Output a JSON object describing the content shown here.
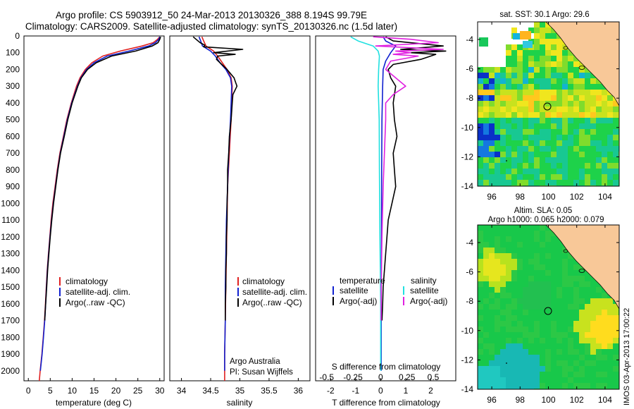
{
  "header": {
    "line1": "Argo profile: CS 5903912_50 24-Mar-2013 20130326_388 8.194S 99.79E",
    "line2": "Climatology: CARS2009. Satellite-adjusted climatology: synTS_20130326.nc (1.5d later)"
  },
  "colors": {
    "climatology": "#e02020",
    "satellite": "#1020d0",
    "argo": "#000000",
    "sat_salinity": "#20e0e0",
    "argo_salinity": "#e020e0",
    "land": "#f8c898"
  },
  "depth_axis": {
    "ticks": [
      0,
      100,
      200,
      300,
      400,
      500,
      600,
      700,
      800,
      900,
      1000,
      1100,
      1200,
      1300,
      1400,
      1500,
      1600,
      1700,
      1800,
      1900,
      2000
    ],
    "range": [
      0,
      2060
    ]
  },
  "chart_data": [
    {
      "type": "line",
      "xlabel": "temperature (deg C)",
      "xlim": [
        -1,
        31
      ],
      "xticks": [
        0,
        5,
        10,
        15,
        20,
        25,
        30
      ],
      "ylabel": "depth",
      "ylim": [
        2060,
        0
      ],
      "legend": [
        "climatology",
        "satellite-adj. clim.",
        "Argo(..raw -QC)"
      ],
      "series": [
        {
          "name": "climatology",
          "color": "#e02020",
          "points": [
            [
              30,
              5
            ],
            [
              29.5,
              20
            ],
            [
              28.5,
              40
            ],
            [
              26,
              60
            ],
            [
              21,
              90
            ],
            [
              17,
              120
            ],
            [
              14.5,
              160
            ],
            [
              13,
              200
            ],
            [
              11.8,
              250
            ],
            [
              11,
              300
            ],
            [
              9.8,
              400
            ],
            [
              8.8,
              500
            ],
            [
              8,
              600
            ],
            [
              7.2,
              700
            ],
            [
              6.6,
              800
            ],
            [
              6.1,
              900
            ],
            [
              5.6,
              1000
            ],
            [
              5.2,
              1100
            ],
            [
              4.9,
              1200
            ],
            [
              4.6,
              1300
            ],
            [
              4.3,
              1400
            ],
            [
              4.1,
              1500
            ],
            [
              3.9,
              1600
            ],
            [
              3.7,
              1700
            ],
            [
              3.4,
              1800
            ],
            [
              3.1,
              1900
            ],
            [
              2.7,
              2000
            ],
            [
              2.5,
              2060
            ]
          ]
        },
        {
          "name": "satellite-adj. clim.",
          "color": "#1020d0",
          "points": [
            [
              30,
              5
            ],
            [
              29.8,
              20
            ],
            [
              29,
              40
            ],
            [
              27.5,
              60
            ],
            [
              23,
              90
            ],
            [
              18,
              120
            ],
            [
              15,
              160
            ],
            [
              13.3,
              200
            ],
            [
              12,
              250
            ],
            [
              11.2,
              300
            ],
            [
              9.9,
              400
            ],
            [
              8.9,
              500
            ],
            [
              8.1,
              600
            ],
            [
              7.3,
              700
            ],
            [
              6.7,
              800
            ],
            [
              6.2,
              900
            ],
            [
              5.7,
              1000
            ],
            [
              5.3,
              1100
            ],
            [
              4.95,
              1200
            ],
            [
              4.65,
              1300
            ],
            [
              4.35,
              1400
            ],
            [
              4.15,
              1500
            ],
            [
              3.95,
              1600
            ],
            [
              3.75,
              1700
            ],
            [
              3.45,
              1800
            ],
            [
              3.15,
              1900
            ],
            [
              2.75,
              2000
            ]
          ]
        },
        {
          "name": "Argo(..raw -QC)",
          "color": "#000000",
          "points": [
            [
              30.2,
              5
            ],
            [
              30,
              20
            ],
            [
              29.6,
              40
            ],
            [
              28.3,
              60
            ],
            [
              24.5,
              90
            ],
            [
              19,
              120
            ],
            [
              15.5,
              160
            ],
            [
              13.5,
              200
            ],
            [
              12.1,
              250
            ],
            [
              11.3,
              300
            ],
            [
              10,
              400
            ],
            [
              9,
              500
            ],
            [
              8.2,
              600
            ],
            [
              7.35,
              700
            ],
            [
              6.75,
              800
            ],
            [
              6.25,
              900
            ],
            [
              5.75,
              1000
            ],
            [
              5.35,
              1100
            ],
            [
              5,
              1200
            ],
            [
              4.7,
              1300
            ],
            [
              4.4,
              1400
            ],
            [
              4.2,
              1500
            ],
            [
              3.95,
              1600
            ],
            [
              3.75,
              1700
            ]
          ]
        }
      ]
    },
    {
      "type": "line",
      "xlabel": "salinity",
      "xlim": [
        33.8,
        36.2
      ],
      "xticks": [
        34,
        34.5,
        35,
        35.5,
        36
      ],
      "ylabel": "depth",
      "ylim": [
        2060,
        0
      ],
      "legend": [
        "climatology",
        "satellite-adj. clim.",
        "Argo(..raw -QC)"
      ],
      "annotation": [
        "Argo Australia",
        "PI: Susan Wijffels"
      ],
      "series": [
        {
          "name": "climatology",
          "color": "#e02020",
          "points": [
            [
              34.35,
              5
            ],
            [
              34.38,
              30
            ],
            [
              34.42,
              60
            ],
            [
              34.55,
              90
            ],
            [
              34.62,
              120
            ],
            [
              34.7,
              160
            ],
            [
              34.78,
              200
            ],
            [
              34.85,
              250
            ],
            [
              34.87,
              300
            ],
            [
              34.86,
              400
            ],
            [
              34.85,
              500
            ],
            [
              34.82,
              700
            ],
            [
              34.79,
              900
            ],
            [
              34.78,
              1100
            ],
            [
              34.77,
              1300
            ],
            [
              34.76,
              1500
            ],
            [
              34.75,
              1700
            ],
            [
              34.74,
              1900
            ],
            [
              34.74,
              2060
            ]
          ]
        },
        {
          "name": "satellite-adj. clim.",
          "color": "#1020d0",
          "points": [
            [
              34.3,
              5
            ],
            [
              34.33,
              30
            ],
            [
              34.36,
              60
            ],
            [
              34.5,
              90
            ],
            [
              34.58,
              120
            ],
            [
              34.66,
              160
            ],
            [
              34.76,
              200
            ],
            [
              34.84,
              250
            ],
            [
              34.86,
              300
            ],
            [
              34.85,
              400
            ],
            [
              34.84,
              500
            ],
            [
              34.81,
              700
            ],
            [
              34.79,
              900
            ],
            [
              34.77,
              1100
            ],
            [
              34.76,
              1300
            ],
            [
              34.75,
              1500
            ],
            [
              34.75,
              1700
            ],
            [
              34.74,
              1900
            ],
            [
              34.74,
              2000
            ]
          ]
        },
        {
          "name": "Argo(..raw -QC)",
          "color": "#000000",
          "points": [
            [
              34.2,
              5
            ],
            [
              34.25,
              20
            ],
            [
              34.32,
              40
            ],
            [
              34.4,
              55
            ],
            [
              34.38,
              65
            ],
            [
              35.05,
              80
            ],
            [
              34.55,
              100
            ],
            [
              34.92,
              110
            ],
            [
              34.62,
              120
            ],
            [
              34.6,
              140
            ],
            [
              34.66,
              160
            ],
            [
              34.78,
              200
            ],
            [
              34.9,
              250
            ],
            [
              34.93,
              280
            ],
            [
              34.95,
              300
            ],
            [
              34.88,
              350
            ],
            [
              34.87,
              400
            ],
            [
              34.85,
              500
            ],
            [
              34.82,
              600
            ],
            [
              34.81,
              700
            ],
            [
              34.79,
              800
            ],
            [
              34.79,
              900
            ],
            [
              34.78,
              1000
            ],
            [
              34.78,
              1100
            ],
            [
              34.77,
              1200
            ],
            [
              34.77,
              1300
            ],
            [
              34.76,
              1400
            ],
            [
              34.76,
              1500
            ],
            [
              34.75,
              1600
            ],
            [
              34.75,
              1700
            ]
          ]
        }
      ]
    },
    {
      "type": "line",
      "xlabel": "T difference from climatology",
      "xlabel2": "S difference from climatology",
      "xlim": [
        -2.6,
        3
      ],
      "xticks": [
        -2,
        -1,
        0,
        1,
        2
      ],
      "xticks_S": [
        "-0.5",
        "-0.25",
        "0",
        "0.25",
        "0.5"
      ],
      "ylabel": "depth",
      "ylim": [
        2060,
        0
      ],
      "legend_temperature": {
        "title": "temperature",
        "items": [
          "satellite",
          "Argo(-adj)"
        ]
      },
      "legend_salinity": {
        "title": "salinity",
        "items": [
          "satellite",
          "Argo(-adj)"
        ]
      },
      "series": [
        {
          "name": "temperature satellite",
          "color": "#1020d0",
          "points": [
            [
              0.1,
              5
            ],
            [
              0.2,
              30
            ],
            [
              0.6,
              60
            ],
            [
              0.4,
              100
            ],
            [
              0.2,
              150
            ],
            [
              0.1,
              200
            ],
            [
              0.08,
              300
            ],
            [
              0.05,
              500
            ],
            [
              0.04,
              800
            ],
            [
              0.03,
              1200
            ],
            [
              0.02,
              1600
            ],
            [
              0.02,
              2000
            ]
          ]
        },
        {
          "name": "temperature Argo(-adj)",
          "color": "#000000",
          "points": [
            [
              0.2,
              5
            ],
            [
              0.5,
              30
            ],
            [
              2.5,
              60
            ],
            [
              0.8,
              80
            ],
            [
              2.6,
              90
            ],
            [
              1.2,
              100
            ],
            [
              2.2,
              110
            ],
            [
              1.6,
              140
            ],
            [
              0.5,
              170
            ],
            [
              0.3,
              200
            ],
            [
              0.4,
              250
            ],
            [
              0.6,
              300
            ],
            [
              0.5,
              400
            ],
            [
              0.55,
              500
            ],
            [
              0.65,
              600
            ],
            [
              0.5,
              700
            ],
            [
              0.55,
              800
            ],
            [
              0.6,
              900
            ],
            [
              0.45,
              1000
            ],
            [
              0.3,
              1100
            ],
            [
              0.25,
              1200
            ],
            [
              0.2,
              1300
            ],
            [
              0.15,
              1400
            ],
            [
              0.1,
              1500
            ],
            [
              0.08,
              1600
            ],
            [
              0.05,
              1700
            ]
          ]
        },
        {
          "name": "salinity satellite",
          "color": "#20e0e0",
          "points": [
            [
              -1.2,
              5
            ],
            [
              -0.9,
              30
            ],
            [
              -0.3,
              60
            ],
            [
              -0.1,
              90
            ],
            [
              -0.05,
              120
            ],
            [
              -0.08,
              200
            ],
            [
              -0.1,
              300
            ],
            [
              -0.06,
              500
            ],
            [
              -0.05,
              800
            ],
            [
              -0.03,
              1200
            ],
            [
              0,
              1600
            ],
            [
              0,
              2000
            ]
          ]
        },
        {
          "name": "salinity Argo(-adj)",
          "color": "#e020e0",
          "points": [
            [
              -0.3,
              5
            ],
            [
              1.2,
              20
            ],
            [
              2.3,
              40
            ],
            [
              -0.2,
              60
            ],
            [
              2.5,
              80
            ],
            [
              0.6,
              90
            ],
            [
              1.2,
              100
            ],
            [
              0.5,
              110
            ],
            [
              1.5,
              120
            ],
            [
              0.4,
              150
            ],
            [
              0.2,
              200
            ],
            [
              1.0,
              300
            ],
            [
              0.5,
              350
            ],
            [
              0.2,
              400
            ],
            [
              0.2,
              500
            ],
            [
              0.15,
              700
            ],
            [
              0.1,
              900
            ],
            [
              0.05,
              1200
            ],
            [
              0.02,
              1500
            ],
            [
              0.02,
              1700
            ]
          ]
        }
      ]
    }
  ],
  "map_top": {
    "title": "sat. SST: 30.1  Argo: 29.6",
    "xticks": [
      "96",
      "98",
      "100",
      "102",
      "104"
    ],
    "yticks": [
      "-4",
      "-6",
      "-8",
      "-10",
      "-12",
      "-14"
    ]
  },
  "map_bottom": {
    "title1": "Altim. SLA: 0.05",
    "title2": "Argo h1000: 0.065 h2000: 0.079",
    "xticks": [
      "96",
      "98",
      "100",
      "102",
      "104"
    ],
    "yticks": [
      "-4",
      "-6",
      "-8",
      "-10",
      "-12",
      "-14"
    ]
  },
  "credit": "IMOS 03-Apr-2013 17:00:22"
}
